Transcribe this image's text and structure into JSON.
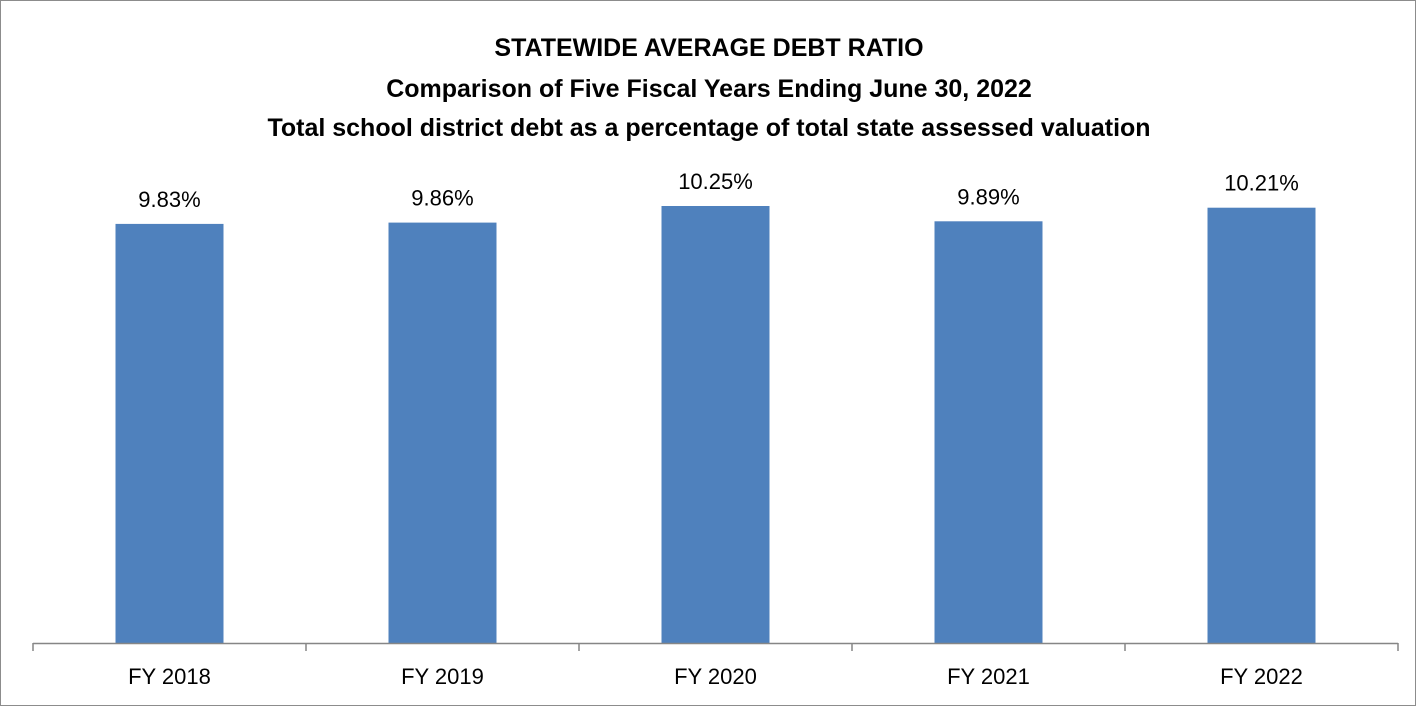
{
  "chart_data": {
    "type": "bar",
    "title_lines": [
      "STATEWIDE AVERAGE DEBT RATIO",
      "Comparison of Five Fiscal Years Ending June 30, 2022",
      "Total school district debt as a percentage of total state assessed valuation"
    ],
    "categories": [
      "FY 2018",
      "FY 2019",
      "FY 2020",
      "FY 2021",
      "FY 2022"
    ],
    "values": [
      9.83,
      9.86,
      10.25,
      9.89,
      10.21
    ],
    "value_labels": [
      "9.83%",
      "9.86%",
      "10.25%",
      "9.89%",
      "10.21%"
    ],
    "xlabel": "",
    "ylabel": "",
    "ylim": [
      0,
      10.25
    ],
    "grid": false,
    "legend": "none",
    "bar_color": "#4f81bd"
  }
}
